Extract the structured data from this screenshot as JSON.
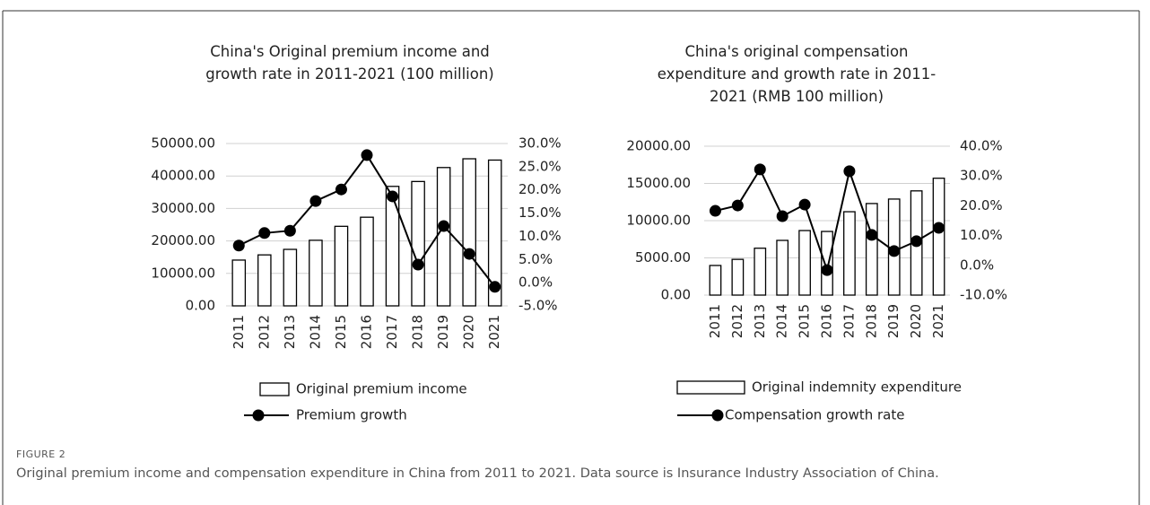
{
  "chart_data": [
    {
      "type": "bar",
      "title": "China's Original premium income and growth rate in 2011-2021 (100 million)",
      "categories": [
        "2011",
        "2012",
        "2013",
        "2014",
        "2015",
        "2016",
        "2017",
        "2018",
        "2019",
        "2020",
        "2021"
      ],
      "series": [
        {
          "name": "Original premium income",
          "type": "bar",
          "color": "#ffffff",
          "edgecolor": "#000000",
          "values": [
            14100,
            15700,
            17400,
            20200,
            24500,
            27300,
            36800,
            38300,
            42600,
            45300,
            44900
          ]
        },
        {
          "name": "Premium growth",
          "type": "line",
          "axis": "y2",
          "color": "#000000",
          "values": [
            8.0,
            10.7,
            11.2,
            17.6,
            20.1,
            27.5,
            18.6,
            3.9,
            12.2,
            6.2,
            -0.9
          ]
        }
      ],
      "ylim": [
        0,
        50000
      ],
      "yticks": [
        {
          "value": 0,
          "label": "0.00"
        },
        {
          "value": 10000,
          "label": "10000.00"
        },
        {
          "value": 20000,
          "label": "20000.00"
        },
        {
          "value": 30000,
          "label": "30000.00"
        },
        {
          "value": 40000,
          "label": "40000.00"
        },
        {
          "value": 50000,
          "label": "50000.00"
        }
      ],
      "y2lim": [
        -5,
        30
      ],
      "y2ticks": [
        {
          "value": -5,
          "label": "-5.0%"
        },
        {
          "value": 0,
          "label": "0.0%"
        },
        {
          "value": 5,
          "label": "5.0%"
        },
        {
          "value": 10,
          "label": "10.0%"
        },
        {
          "value": 15,
          "label": "15.0%"
        },
        {
          "value": 20,
          "label": "20.0%"
        },
        {
          "value": 25,
          "label": "25.0%"
        },
        {
          "value": 30,
          "label": "30.0%"
        }
      ],
      "grid": true
    },
    {
      "type": "bar",
      "title": "China's original compensation expenditure and growth rate in 2011-2021 (RMB 100 million)",
      "categories": [
        "2011",
        "2012",
        "2013",
        "2014",
        "2015",
        "2016",
        "2017",
        "2018",
        "2019",
        "2020",
        "2021"
      ],
      "series": [
        {
          "name": "Original indemnity expenditure",
          "type": "bar",
          "color": "#ffffff",
          "edgecolor": "#000000",
          "values": [
            3980,
            4800,
            6300,
            7350,
            8670,
            8550,
            11200,
            12300,
            12900,
            14000,
            15700
          ]
        },
        {
          "name": "Compensation growth rate",
          "type": "line",
          "axis": "y2",
          "color": "#000000",
          "values": [
            18.3,
            20.1,
            32.2,
            16.5,
            20.4,
            -1.6,
            31.6,
            10.2,
            4.8,
            8.1,
            12.6
          ]
        }
      ],
      "ylim": [
        0,
        20000
      ],
      "yticks": [
        {
          "value": 0,
          "label": "0.00"
        },
        {
          "value": 5000,
          "label": "5000.00"
        },
        {
          "value": 10000,
          "label": "10000.00"
        },
        {
          "value": 15000,
          "label": "15000.00"
        },
        {
          "value": 20000,
          "label": "20000.00"
        }
      ],
      "y2lim": [
        -10,
        40
      ],
      "y2ticks": [
        {
          "value": -10,
          "label": "-10.0%"
        },
        {
          "value": 0,
          "label": "0.0%"
        },
        {
          "value": 10,
          "label": "10.0%"
        },
        {
          "value": 20,
          "label": "20.0%"
        },
        {
          "value": 30,
          "label": "30.0%"
        },
        {
          "value": 40,
          "label": "40.0%"
        }
      ],
      "grid": true
    }
  ],
  "figure": {
    "label": "FIGURE 2",
    "caption": "Original premium income and compensation expenditure in China from 2011 to 2021. Data source is Insurance Industry Association of China."
  }
}
